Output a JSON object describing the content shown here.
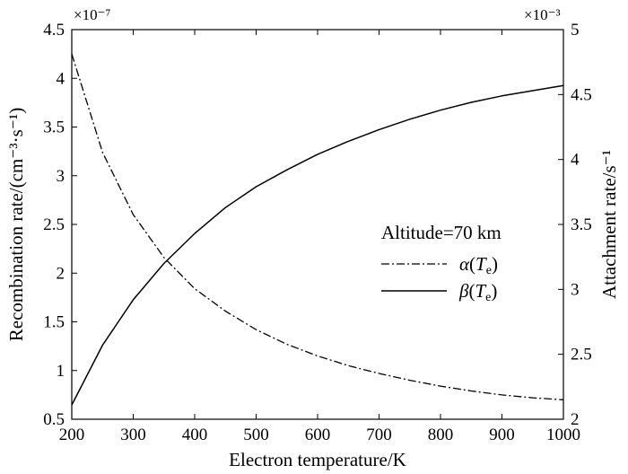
{
  "chart_data": {
    "type": "line",
    "xlabel": "Electron temperature/K",
    "ylabel_left": "Recombination rate/(cm⁻³·s⁻¹)",
    "ylabel_right": "Attachment rate/s⁻¹",
    "multiplier_left": "×10⁻⁷",
    "multiplier_right": "×10⁻³",
    "xlim": [
      200,
      1000
    ],
    "ylim_left": [
      0.5,
      4.5
    ],
    "ylim_right": [
      2,
      5
    ],
    "xticks": [
      200,
      300,
      400,
      500,
      600,
      700,
      800,
      900,
      1000
    ],
    "yticks_left": [
      "0.5",
      "1",
      "1.5",
      "2",
      "2.5",
      "3",
      "3.5",
      "4",
      "4.5"
    ],
    "yticks_right": [
      "2",
      "2.5",
      "3",
      "3.5",
      "4",
      "4.5",
      "5"
    ],
    "grid": false,
    "legend_title": "Altitude=70 km",
    "legend_position": "right-middle",
    "series": [
      {
        "name": "α(Te)",
        "symbol": "α",
        "subscript": "e",
        "axis": "left",
        "style": "dashdot",
        "color": "#000000",
        "x": [
          200,
          250,
          300,
          350,
          400,
          450,
          500,
          550,
          600,
          650,
          700,
          750,
          800,
          850,
          900,
          950,
          1000
        ],
        "y": [
          4.25,
          3.24,
          2.6,
          2.16,
          1.84,
          1.61,
          1.42,
          1.27,
          1.15,
          1.05,
          0.97,
          0.9,
          0.84,
          0.79,
          0.75,
          0.72,
          0.7
        ]
      },
      {
        "name": "β(Te)",
        "symbol": "β",
        "subscript": "e",
        "axis": "right",
        "style": "solid",
        "color": "#000000",
        "x": [
          200,
          250,
          300,
          350,
          400,
          450,
          500,
          550,
          600,
          650,
          700,
          750,
          800,
          850,
          900,
          950,
          1000
        ],
        "y": [
          2.11,
          2.57,
          2.92,
          3.2,
          3.43,
          3.63,
          3.79,
          3.92,
          4.04,
          4.14,
          4.23,
          4.31,
          4.38,
          4.44,
          4.49,
          4.53,
          4.57
        ]
      }
    ]
  }
}
